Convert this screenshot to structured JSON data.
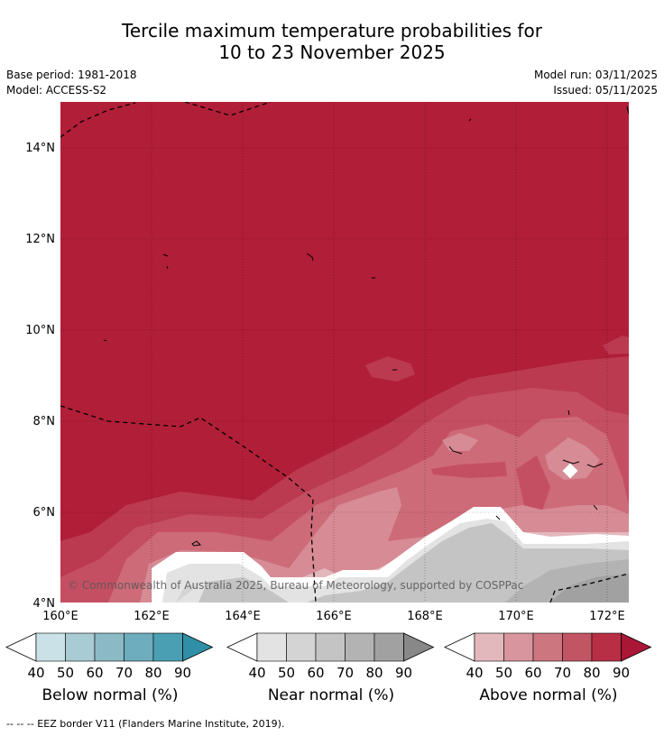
{
  "title": {
    "line1": "Tercile maximum temperature probabilities for",
    "line2": "10 to 23 November 2025"
  },
  "meta": {
    "base_period": "Base period: 1981-2018",
    "model": "Model: ACCESS-S2",
    "model_run": "Model run: 03/11/2025",
    "issued": "Issued: 05/11/2025"
  },
  "map": {
    "lat_labels": [
      "14°N",
      "12°N",
      "10°N",
      "8°N",
      "6°N",
      "4°N"
    ],
    "lon_labels": [
      "160°E",
      "162°E",
      "164°E",
      "166°E",
      "168°E",
      "170°E",
      "172°E"
    ],
    "copyright": "© Commonwealth of Australia 2025, Bureau of Meteorology, supported by COSPPac",
    "gridlines": true,
    "dominant_category": "Above normal, 90%+",
    "colors": {
      "above_90": "#b11e37",
      "ocean_land_outline": "#000000"
    }
  },
  "colorbars": [
    {
      "name": "Below normal (%)",
      "ticks": [
        "40",
        "50",
        "60",
        "70",
        "80",
        "90"
      ],
      "colors": [
        "#c9e1e7",
        "#a9cbd3",
        "#8bbac6",
        "#6dadbd",
        "#4b9fb3",
        "#2e8fa6"
      ]
    },
    {
      "name": "Near normal (%)",
      "ticks": [
        "40",
        "50",
        "60",
        "70",
        "80",
        "90"
      ],
      "colors": [
        "#e3e3e3",
        "#d4d4d4",
        "#c4c4c4",
        "#b3b3b3",
        "#a1a1a1",
        "#888888"
      ]
    },
    {
      "name": "Above normal (%)",
      "ticks": [
        "40",
        "50",
        "60",
        "70",
        "80",
        "90"
      ],
      "colors": [
        "#e3b8bd",
        "#d8959d",
        "#cc7680",
        "#c25563",
        "#b82f45",
        "#a91636"
      ]
    }
  ],
  "footnote": "--  --  -- EEZ border V11 (Flanders Marine Institute, 2019)."
}
